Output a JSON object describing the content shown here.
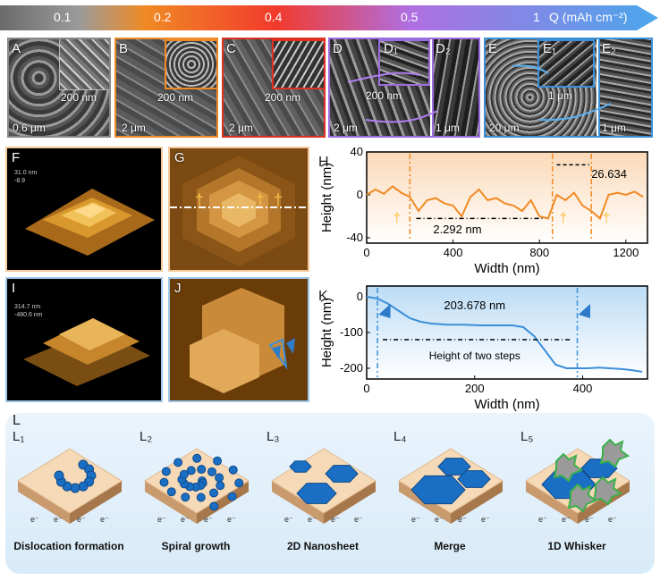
{
  "gradient_bar": {
    "ticks": [
      "0.1",
      "0.2",
      "0.4",
      "0.5",
      "1"
    ],
    "unit_label": "Q (mAh cm⁻²)"
  },
  "sem_row": {
    "panels": [
      {
        "letter": "A",
        "inset_scale": "200 nm",
        "scale": "0.6 μm"
      },
      {
        "letter": "B",
        "inset_scale": "200 nm",
        "scale": "2 μm"
      },
      {
        "letter": "C",
        "inset_scale": "200 nm",
        "scale": "2 μm"
      },
      {
        "letter": "D",
        "sub1": "D₁",
        "inset_scale": "200 nm",
        "scale": "2 μm"
      },
      {
        "letter": "D₂",
        "scale": "1 μm"
      },
      {
        "letter": "E",
        "sub1": "E₁",
        "inset_scale": "1 μm",
        "scale": "20 μm"
      },
      {
        "letter": "E₂",
        "scale": "1 μm"
      }
    ]
  },
  "afm": {
    "F": {
      "letter": "F",
      "axis_top": "31.0 nm",
      "axis_top2": "-8.9"
    },
    "G": {
      "letter": "G"
    },
    "I": {
      "letter": "I",
      "axis_top": "314.7 nm",
      "axis_top2": "-480.6 nm"
    },
    "J": {
      "letter": "J"
    }
  },
  "chart_data": [
    {
      "type": "line",
      "panel_letter": "H",
      "xlabel": "Width (nm)",
      "ylabel": "Height (nm)",
      "xlim": [
        0,
        1300
      ],
      "ylim": [
        -45,
        40
      ],
      "xticks": [
        "0",
        "400",
        "800",
        "1200"
      ],
      "yticks": [
        "40",
        "0",
        "-40"
      ],
      "x": [
        0,
        40,
        80,
        120,
        160,
        200,
        240,
        280,
        320,
        360,
        400,
        440,
        480,
        520,
        560,
        600,
        640,
        680,
        720,
        760,
        800,
        840,
        880,
        920,
        960,
        1000,
        1040,
        1080,
        1120,
        1160,
        1200,
        1240,
        1280
      ],
      "y": [
        0,
        5,
        1,
        8,
        2,
        -2,
        -15,
        -5,
        -3,
        -8,
        -10,
        -20,
        -2,
        5,
        -5,
        -3,
        -8,
        -10,
        -15,
        -5,
        -20,
        -22,
        0,
        -5,
        2,
        -10,
        -15,
        -22,
        0,
        2,
        0,
        3,
        -2
      ],
      "annotations": {
        "step_width": "2.292 nm",
        "step_height": "26.634"
      },
      "markers": [
        200,
        860,
        1040
      ]
    },
    {
      "type": "line",
      "panel_letter": "K",
      "xlabel": "Width (nm)",
      "ylabel": "Height (nm)",
      "xlim": [
        0,
        520
      ],
      "ylim": [
        -230,
        30
      ],
      "xticks": [
        "0",
        "200",
        "400"
      ],
      "yticks": [
        "0",
        "-100",
        "-200"
      ],
      "x": [
        0,
        20,
        40,
        60,
        80,
        100,
        120,
        150,
        180,
        210,
        240,
        270,
        290,
        310,
        330,
        350,
        370,
        390,
        410,
        430,
        450,
        470,
        490,
        510
      ],
      "y": [
        0,
        -5,
        -20,
        -40,
        -60,
        -70,
        -75,
        -78,
        -78,
        -80,
        -80,
        -80,
        -85,
        -110,
        -150,
        -190,
        -200,
        -200,
        -200,
        -198,
        -200,
        -202,
        -205,
        -210
      ],
      "annotations": {
        "step_width": "203.678 nm",
        "note": "Height of two steps"
      },
      "markers": [
        20,
        390
      ]
    }
  ],
  "schematic": {
    "letter": "L",
    "steps": [
      {
        "id": "L₁",
        "caption": "Dislocation formation"
      },
      {
        "id": "L₂",
        "caption": "Spiral growth"
      },
      {
        "id": "L₃",
        "caption": "2D Nanosheet"
      },
      {
        "id": "L₄",
        "caption": "Merge"
      },
      {
        "id": "L₅",
        "caption": "1D Whisker"
      }
    ],
    "electron_label": "e⁻"
  },
  "colors": {
    "orange": "#f08a24",
    "blue": "#3b8fd9",
    "purple": "#9a6de0",
    "red": "#e03020"
  }
}
